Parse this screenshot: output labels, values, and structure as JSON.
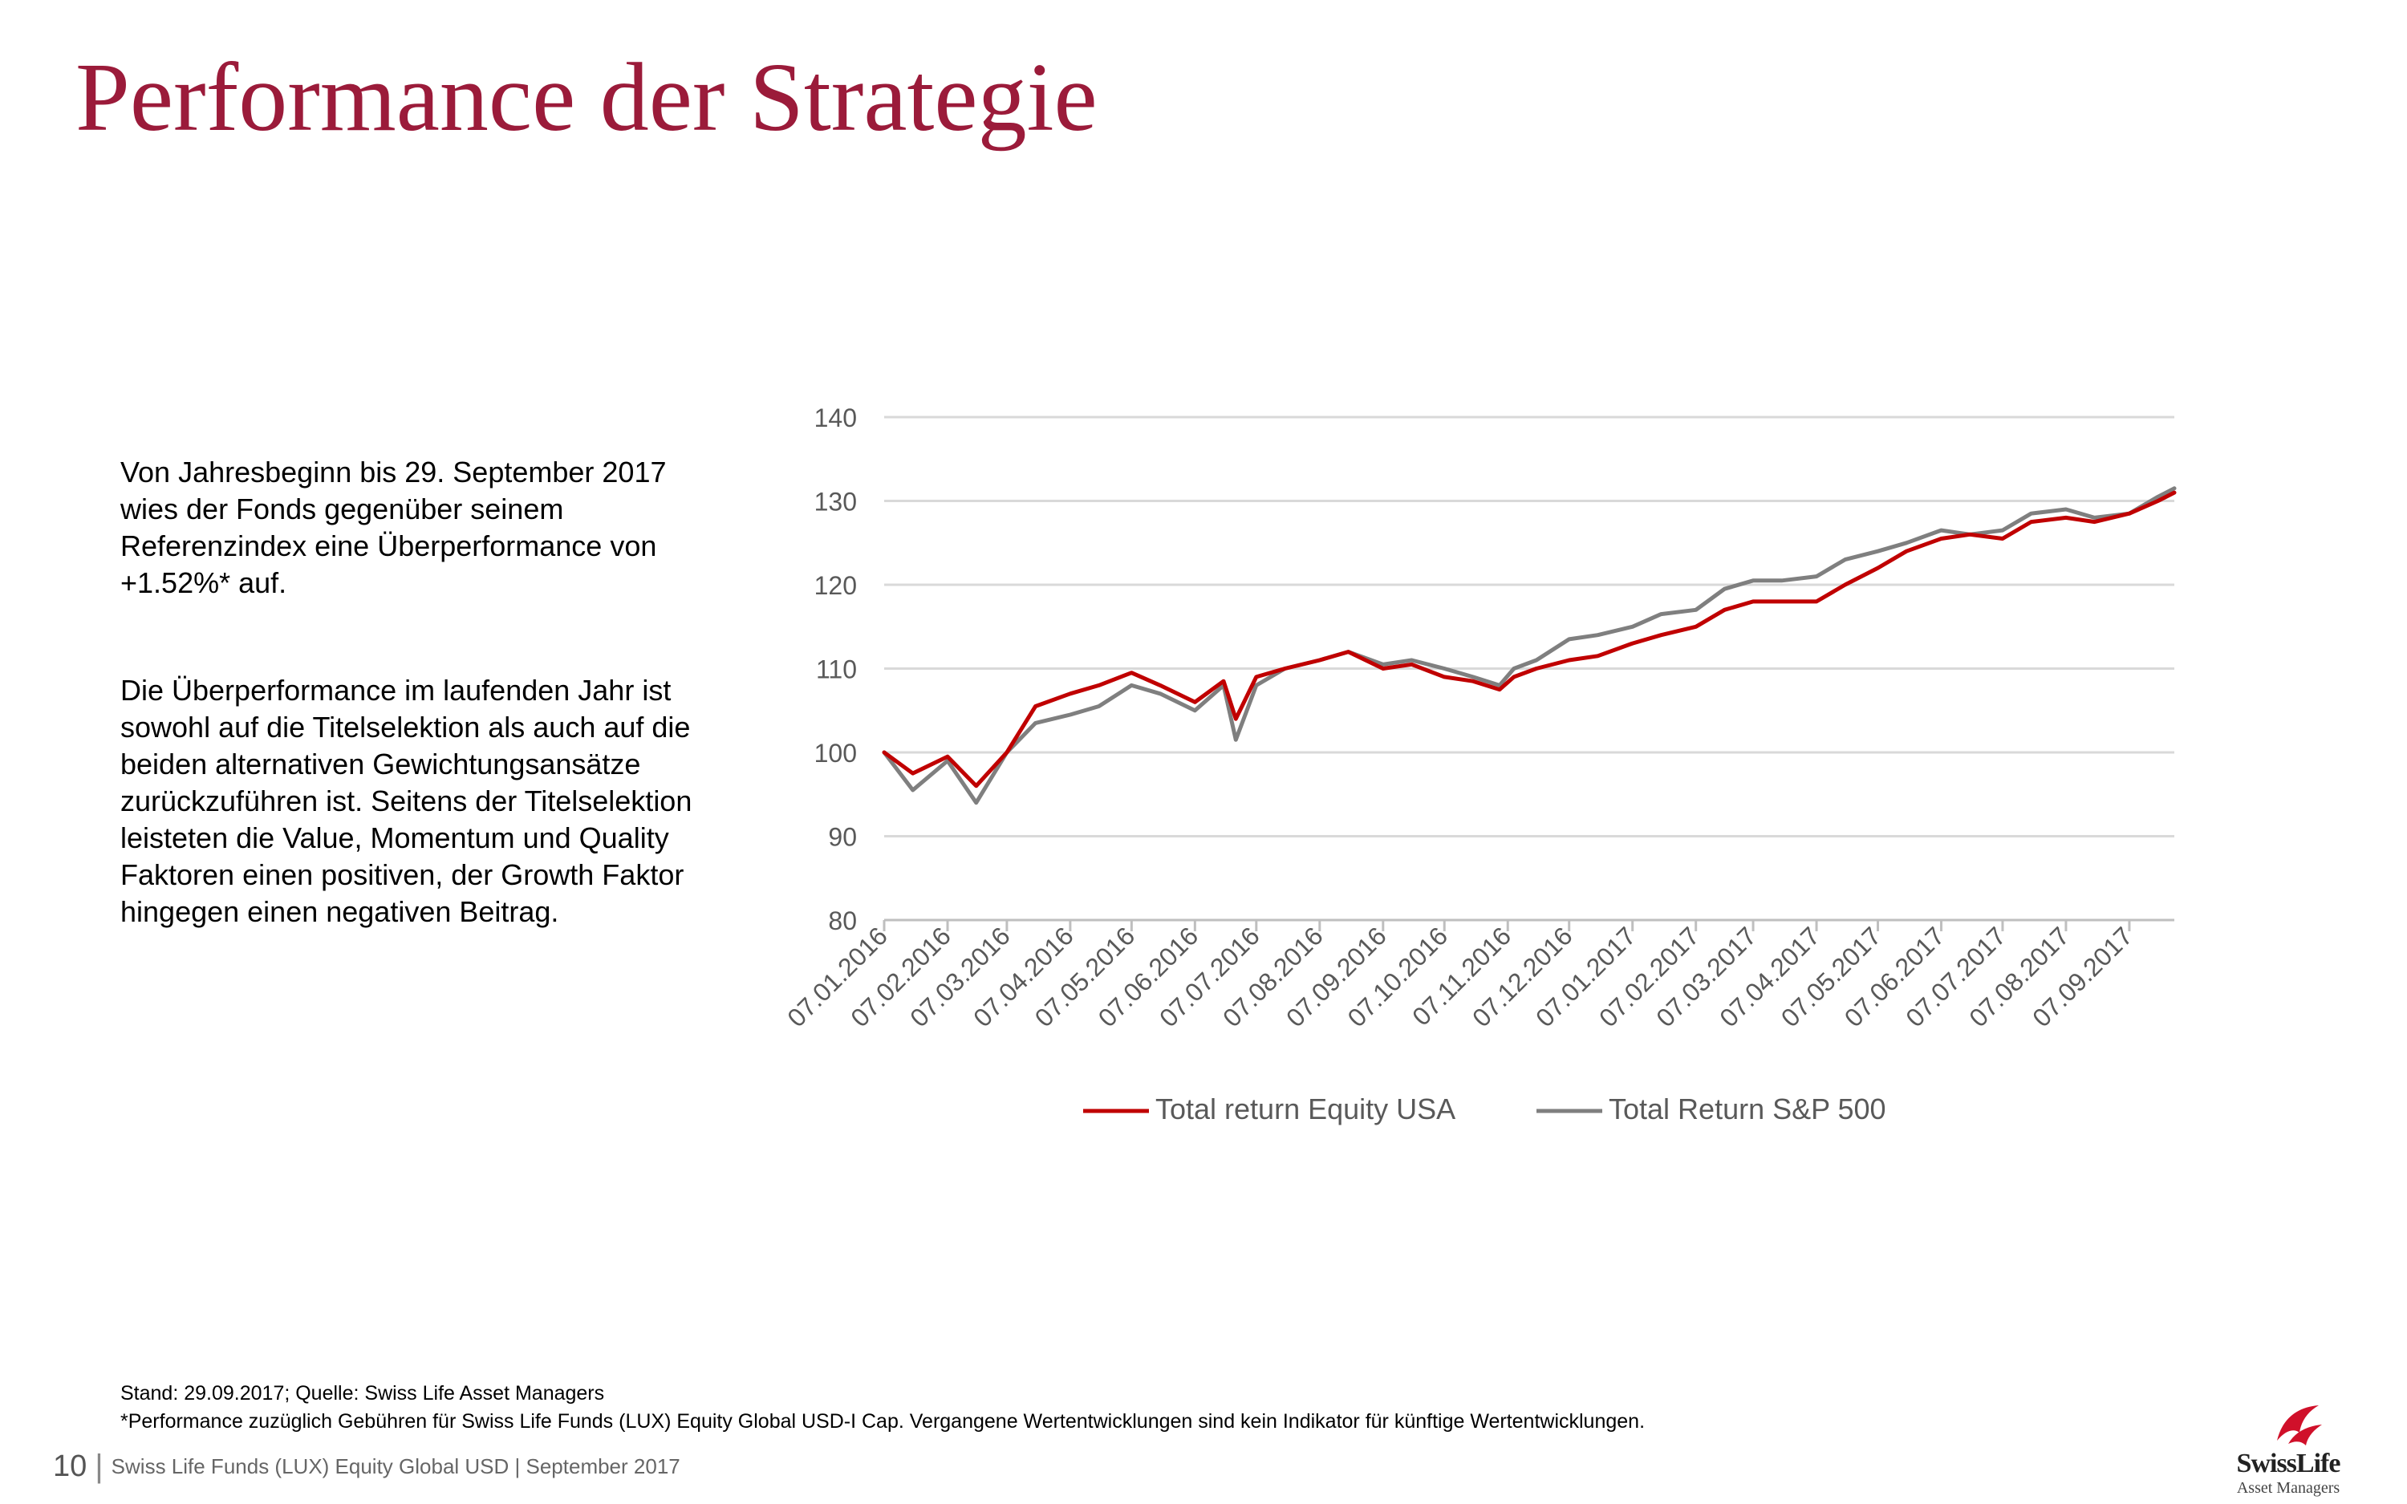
{
  "slide": {
    "title": "Performance der Strategie"
  },
  "text": {
    "para1": "Von Jahresbeginn bis 29. September 2017 wies der Fonds gegenüber seinem Referenzindex  eine Überperformance von +1.52%* auf.",
    "para2": "Die Überperformance im laufenden Jahr ist sowohl auf die Titelselektion als auch auf die beiden alternativen Gewichtungsansätze zurückzuführen ist. Seitens der Titelselektion leisteten die Value, Momentum und Quality Faktoren einen positiven, der Growth Faktor hingegen einen negativen Beitrag."
  },
  "footnotes": {
    "source": "Stand: 29.09.2017; Quelle: Swiss Life Asset Managers",
    "disclaimer": "*Performance zuzüglich Gebühren für Swiss Life Funds (LUX) Equity Global USD-I Cap. Vergangene Wertentwicklungen sind kein Indikator für künftige Wertentwicklungen."
  },
  "footer": {
    "page_number": "10",
    "separator": "|",
    "text": "Swiss Life Funds (LUX) Equity Global USD | September 2017"
  },
  "logo": {
    "brand": "SwissLife",
    "sub": "Asset Managers",
    "color": "#d0102a"
  },
  "chart_data": {
    "type": "line",
    "x_tick_labels": [
      "07.01.2016",
      "07.02.2016",
      "07.03.2016",
      "07.04.2016",
      "07.05.2016",
      "07.06.2016",
      "07.07.2016",
      "07.08.2016",
      "07.09.2016",
      "07.10.2016",
      "07.11.2016",
      "07.12.2016",
      "07.01.2017",
      "07.02.2017",
      "07.03.2017",
      "07.04.2017",
      "07.05.2017",
      "07.06.2017",
      "07.07.2017",
      "07.08.2017",
      "07.09.2017"
    ],
    "y_ticks": [
      80,
      90,
      100,
      110,
      120,
      130,
      140
    ],
    "ylim": [
      80,
      140
    ],
    "grid": true,
    "legend_position": "bottom",
    "x": [
      "2016-01-07",
      "2016-01-21",
      "2016-02-07",
      "2016-02-21",
      "2016-03-07",
      "2016-03-21",
      "2016-04-07",
      "2016-04-21",
      "2016-05-07",
      "2016-05-21",
      "2016-06-07",
      "2016-06-21",
      "2016-06-27",
      "2016-07-07",
      "2016-07-21",
      "2016-08-07",
      "2016-08-21",
      "2016-09-07",
      "2016-09-21",
      "2016-10-07",
      "2016-10-21",
      "2016-11-03",
      "2016-11-10",
      "2016-11-21",
      "2016-12-07",
      "2016-12-21",
      "2017-01-07",
      "2017-01-21",
      "2017-02-07",
      "2017-02-21",
      "2017-03-07",
      "2017-03-21",
      "2017-04-07",
      "2017-04-21",
      "2017-05-07",
      "2017-05-21",
      "2017-06-07",
      "2017-06-21",
      "2017-07-07",
      "2017-07-21",
      "2017-08-07",
      "2017-08-21",
      "2017-09-07",
      "2017-09-21",
      "2017-09-29"
    ],
    "series": [
      {
        "name": "Total return Equity USA",
        "color": "#c00000",
        "values": [
          100,
          97.5,
          99.5,
          96,
          100,
          105.5,
          107,
          108,
          109.5,
          108,
          106,
          108.5,
          104,
          109,
          110,
          111,
          112,
          110,
          110.5,
          109,
          108.5,
          107.5,
          109,
          110,
          111,
          111.5,
          113,
          114,
          115,
          117,
          118,
          118,
          118,
          120,
          122,
          124,
          125.5,
          126,
          125.5,
          127.5,
          128,
          127.5,
          128.5,
          130,
          131
        ]
      },
      {
        "name": "Total Return S&P 500",
        "color": "#7f7f7f",
        "values": [
          100,
          95.5,
          99,
          94,
          100,
          103.5,
          104.5,
          105.5,
          108,
          107,
          105,
          108,
          101.5,
          108,
          110,
          111,
          112,
          110.5,
          111,
          110,
          109,
          108,
          110,
          111,
          113.5,
          114,
          115,
          116.5,
          117,
          119.5,
          120.5,
          120.5,
          121,
          123,
          124,
          125,
          126.5,
          126,
          126.5,
          128.5,
          129,
          128,
          128.5,
          130.5,
          131.5
        ]
      }
    ]
  }
}
